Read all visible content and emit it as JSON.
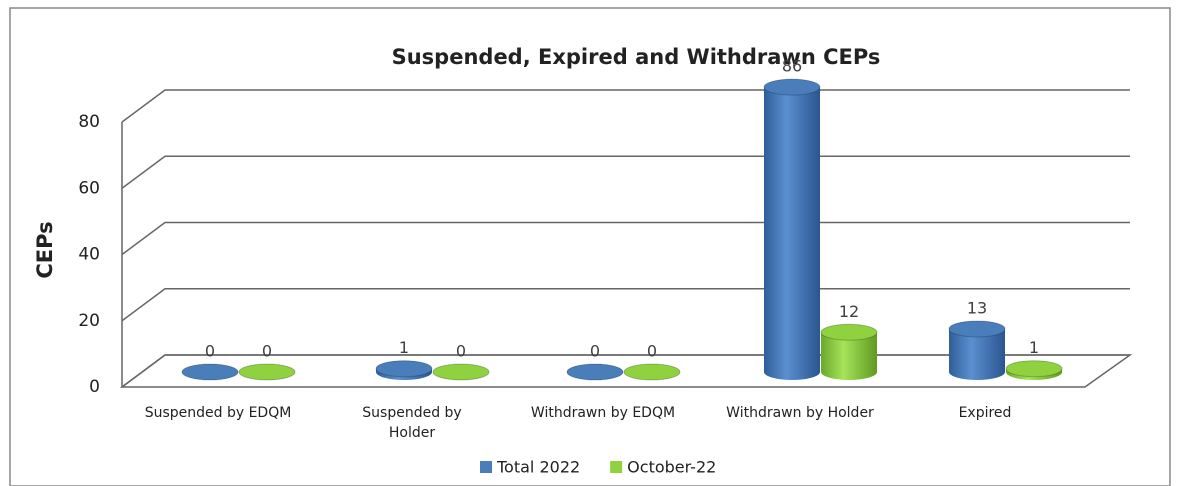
{
  "chart_data": {
    "type": "bar3d",
    "title": "Suspended, Expired and Withdrawn CEPs",
    "y_label": "CEPs",
    "categories": [
      "Suspended by EDQM",
      "Suspended by Holder",
      "Withdrawn by EDQM",
      "Withdrawn by Holder",
      "Expired"
    ],
    "series": [
      {
        "name": "Total 2022",
        "color": "#4a7ebb",
        "values": [
          0,
          1,
          0,
          86,
          13
        ]
      },
      {
        "name": "October-22",
        "color": "#8fd13f",
        "values": [
          0,
          0,
          0,
          12,
          1
        ]
      }
    ],
    "ylim": [
      0,
      80
    ],
    "yticks": [
      0,
      20,
      40,
      60,
      80
    ],
    "grid": true,
    "legend": "bottom"
  }
}
